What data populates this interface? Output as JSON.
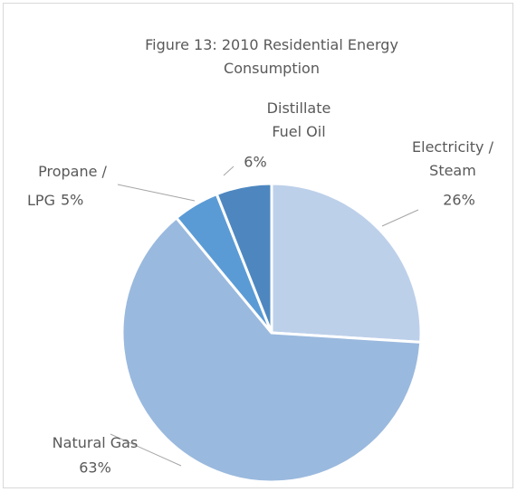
{
  "chart_data": {
    "type": "pie",
    "title": "Figure 13: 2010 Residential Energy Consumption",
    "categories": [
      "Electricity / Steam",
      "Natural Gas",
      "Propane / LPG",
      "Distillate Fuel Oil"
    ],
    "values": [
      26,
      63,
      5,
      6
    ],
    "value_labels": [
      "26%",
      "63%",
      "5%",
      "6%"
    ],
    "colors": [
      "#bdd0ea",
      "#9ab9de",
      "#5b9bd5",
      "#4e87c0"
    ]
  }
}
